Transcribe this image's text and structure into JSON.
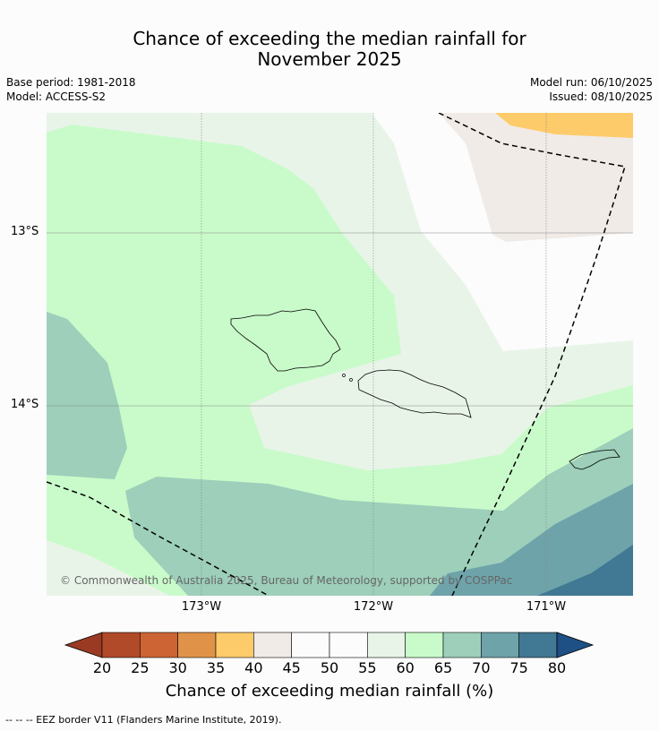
{
  "title": {
    "line1": "Chance of exceeding the median rainfall for",
    "line2": "November 2025"
  },
  "meta": {
    "base_period": "Base period: 1981-2018",
    "model": "Model: ACCESS-S2",
    "model_run": "Model run: 06/10/2025",
    "issued": "Issued: 08/10/2025"
  },
  "map": {
    "lat_labels": [
      "13°S",
      "14°S"
    ],
    "lon_labels": [
      "173°W",
      "172°W",
      "171°W"
    ],
    "copyright": "© Commonwealth of Australia 2025, Bureau of Meteorology, supported by COSPPac"
  },
  "colorbar": {
    "ticks": [
      "20",
      "25",
      "30",
      "35",
      "40",
      "45",
      "50",
      "55",
      "60",
      "65",
      "70",
      "75",
      "80"
    ],
    "colors": [
      "#b04a29",
      "#cc6434",
      "#e09348",
      "#fdcb6a",
      "#f0ebe7",
      "#fbfcfb",
      "#fbfcfb",
      "#e9f4e9",
      "#c9fbca",
      "#9dcfba",
      "#6ea3aa",
      "#417893"
    ],
    "under_color": "#9a3a22",
    "over_color": "#1e5086",
    "label": "Chance of exceeding median rainfall (%)"
  },
  "footer": "--  --  -- EEZ border V11 (Flanders Marine Institute, 2019)."
}
